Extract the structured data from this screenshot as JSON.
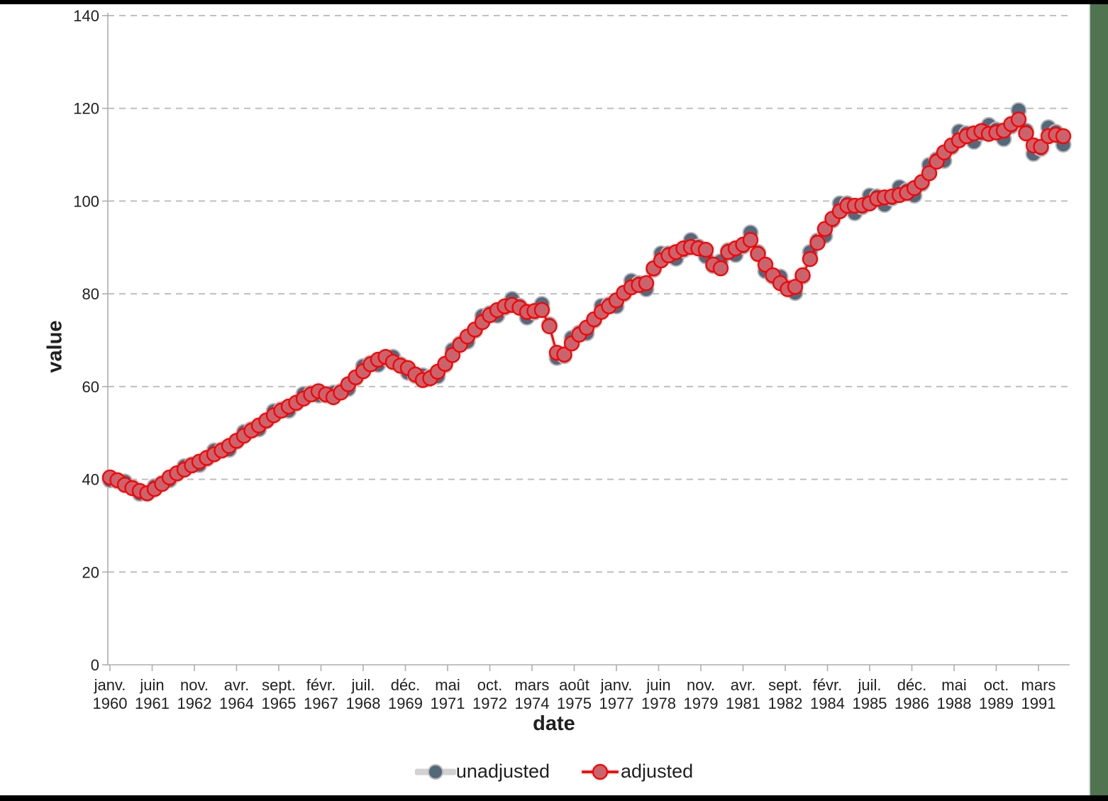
{
  "frame": {
    "top_bar_color": "#000000",
    "bottom_bar_color": "#000000",
    "right_bar_color": "#507350"
  },
  "chart_data": {
    "type": "line",
    "title": "",
    "xlabel": "date",
    "ylabel": "value",
    "ylim": [
      0,
      140
    ],
    "y_ticks": [
      0,
      20,
      40,
      60,
      80,
      100,
      120,
      140
    ],
    "grid": "horizontal-dashed",
    "legend_position": "bottom-center",
    "x_tick_labels": [
      {
        "month": "janv.",
        "year": "1960"
      },
      {
        "month": "juin",
        "year": "1961"
      },
      {
        "month": "nov.",
        "year": "1962"
      },
      {
        "month": "avr.",
        "year": "1964"
      },
      {
        "month": "sept.",
        "year": "1965"
      },
      {
        "month": "févr.",
        "year": "1967"
      },
      {
        "month": "juil.",
        "year": "1968"
      },
      {
        "month": "déc.",
        "year": "1969"
      },
      {
        "month": "mai",
        "year": "1971"
      },
      {
        "month": "oct.",
        "year": "1972"
      },
      {
        "month": "mars",
        "year": "1974"
      },
      {
        "month": "août",
        "year": "1975"
      },
      {
        "month": "janv.",
        "year": "1977"
      },
      {
        "month": "juin",
        "year": "1978"
      },
      {
        "month": "nov.",
        "year": "1979"
      },
      {
        "month": "avr.",
        "year": "1981"
      },
      {
        "month": "sept.",
        "year": "1982"
      },
      {
        "month": "févr.",
        "year": "1984"
      },
      {
        "month": "juil.",
        "year": "1985"
      },
      {
        "month": "déc.",
        "year": "1986"
      },
      {
        "month": "mai",
        "year": "1988"
      },
      {
        "month": "oct.",
        "year": "1989"
      },
      {
        "month": "mars",
        "year": "1991"
      }
    ],
    "x": [
      "1960-Q1",
      "1960-Q2",
      "1960-Q3",
      "1960-Q4",
      "1961-Q1",
      "1961-Q2",
      "1961-Q3",
      "1961-Q4",
      "1962-Q1",
      "1962-Q2",
      "1962-Q3",
      "1962-Q4",
      "1963-Q1",
      "1963-Q2",
      "1963-Q3",
      "1963-Q4",
      "1964-Q1",
      "1964-Q2",
      "1964-Q3",
      "1964-Q4",
      "1965-Q1",
      "1965-Q2",
      "1965-Q3",
      "1965-Q4",
      "1966-Q1",
      "1966-Q2",
      "1966-Q3",
      "1966-Q4",
      "1967-Q1",
      "1967-Q2",
      "1967-Q3",
      "1967-Q4",
      "1968-Q1",
      "1968-Q2",
      "1968-Q3",
      "1968-Q4",
      "1969-Q1",
      "1969-Q2",
      "1969-Q3",
      "1969-Q4",
      "1970-Q1",
      "1970-Q2",
      "1970-Q3",
      "1970-Q4",
      "1971-Q1",
      "1971-Q2",
      "1971-Q3",
      "1971-Q4",
      "1972-Q1",
      "1972-Q2",
      "1972-Q3",
      "1972-Q4",
      "1973-Q1",
      "1973-Q2",
      "1973-Q3",
      "1973-Q4",
      "1974-Q1",
      "1974-Q2",
      "1974-Q3",
      "1974-Q4",
      "1975-Q1",
      "1975-Q2",
      "1975-Q3",
      "1975-Q4",
      "1976-Q1",
      "1976-Q2",
      "1976-Q3",
      "1976-Q4",
      "1977-Q1",
      "1977-Q2",
      "1977-Q3",
      "1977-Q4",
      "1978-Q1",
      "1978-Q2",
      "1978-Q3",
      "1978-Q4",
      "1979-Q1",
      "1979-Q2",
      "1979-Q3",
      "1979-Q4",
      "1980-Q1",
      "1980-Q2",
      "1980-Q3",
      "1980-Q4",
      "1981-Q1",
      "1981-Q2",
      "1981-Q3",
      "1981-Q4",
      "1982-Q1",
      "1982-Q2",
      "1982-Q3",
      "1982-Q4",
      "1983-Q1",
      "1983-Q2",
      "1983-Q3",
      "1983-Q4",
      "1984-Q1",
      "1984-Q2",
      "1984-Q3",
      "1984-Q4",
      "1985-Q1",
      "1985-Q2",
      "1985-Q3",
      "1985-Q4",
      "1986-Q1",
      "1986-Q2",
      "1986-Q3",
      "1986-Q4",
      "1987-Q1",
      "1987-Q2",
      "1987-Q3",
      "1987-Q4",
      "1988-Q1",
      "1988-Q2",
      "1988-Q3",
      "1988-Q4",
      "1989-Q1",
      "1989-Q2",
      "1989-Q3",
      "1989-Q4",
      "1990-Q1",
      "1990-Q2",
      "1990-Q3",
      "1990-Q4",
      "1991-Q1",
      "1991-Q2",
      "1991-Q3",
      "1991-Q4",
      "1992-Q1"
    ],
    "series": [
      {
        "name": "unadjusted",
        "values": [
          39.8,
          39.6,
          39.5,
          38.3,
          36.9,
          36.9,
          38.5,
          39.2,
          39.8,
          41.1,
          42.8,
          43.2,
          43.1,
          44.4,
          46.2,
          46.4,
          46.4,
          48.1,
          50.2,
          50.8,
          50.8,
          52.5,
          54.7,
          55.1,
          54.8,
          56.3,
          58.4,
          58.6,
          58.1,
          58.1,
          58.7,
          59.0,
          59.5,
          61.8,
          64.4,
          65.1,
          64.7,
          66.1,
          66.4,
          64.8,
          63.0,
          62.3,
          62.4,
          62.1,
          62.2,
          64.6,
          67.9,
          69.3,
          69.7,
          72.0,
          75.2,
          75.8,
          75.3,
          77.0,
          78.9,
          77.4,
          74.9,
          76.0,
          77.8,
          73.4,
          66.2,
          66.6,
          70.5,
          71.6,
          71.5,
          74.2,
          77.4,
          77.7,
          77.3,
          79.9,
          82.8,
          82.3,
          81.0,
          85.2,
          88.7,
          88.7,
          87.6,
          89.4,
          91.6,
          90.2,
          88.1,
          86.0,
          87.0,
          89.4,
          88.4,
          90.2,
          93.2,
          89.0,
          84.9,
          83.7,
          83.7,
          81.4,
          80.2,
          83.7,
          89.0,
          91.5,
          92.5,
          95.8,
          99.5,
          99.5,
          97.4,
          98.7,
          101.2,
          101.0,
          99.2,
          100.6,
          103.0,
          102.3,
          101.2,
          103.7,
          107.8,
          109.0,
          108.7,
          111.6,
          115.0,
          114.6,
          112.8,
          114.6,
          116.4,
          115.4,
          113.4,
          116.1,
          119.6,
          115.2,
          110.2,
          111.3,
          115.9,
          114.9,
          112.2
        ]
      },
      {
        "name": "adjusted",
        "values": [
          40.4,
          39.8,
          38.8,
          38.1,
          37.5,
          37.0,
          37.9,
          39.0,
          40.4,
          41.3,
          42.1,
          43.0,
          43.8,
          44.6,
          45.4,
          46.2,
          47.2,
          48.3,
          49.4,
          50.5,
          51.6,
          52.7,
          53.8,
          54.8,
          55.7,
          56.5,
          57.4,
          58.3,
          59.0,
          58.3,
          57.7,
          58.7,
          60.5,
          62.0,
          63.3,
          64.8,
          65.8,
          66.4,
          65.3,
          64.5,
          64.0,
          62.6,
          61.4,
          61.8,
          63.2,
          64.9,
          66.8,
          69.0,
          70.8,
          72.3,
          73.9,
          75.4,
          76.5,
          77.3,
          77.6,
          77.0,
          76.1,
          76.3,
          76.5,
          73.0,
          67.3,
          66.9,
          69.3,
          71.2,
          72.7,
          74.5,
          76.1,
          77.3,
          78.6,
          80.2,
          81.4,
          81.9,
          82.3,
          85.5,
          87.2,
          88.3,
          89.0,
          89.8,
          90.1,
          89.8,
          89.5,
          86.3,
          85.5,
          89.0,
          89.8,
          90.6,
          91.6,
          88.6,
          86.3,
          84.0,
          82.3,
          81.0,
          81.5,
          84.0,
          87.5,
          91.0,
          94.0,
          96.2,
          97.8,
          99.0,
          99.0,
          99.1,
          99.5,
          100.5,
          100.8,
          101.0,
          101.3,
          101.8,
          102.8,
          104.1,
          106.0,
          108.5,
          110.5,
          112.0,
          113.1,
          114.0,
          114.6,
          115.1,
          114.5,
          114.8,
          115.2,
          116.6,
          117.6,
          114.6,
          112.0,
          111.7,
          114.0,
          114.3,
          114.0
        ]
      }
    ],
    "colors": {
      "adjusted_line": "#ff0000",
      "adjusted_marker_fill": "#c7656f",
      "adjusted_marker_stroke": "#ff0000",
      "unadjusted_line": "#d2d2d2",
      "unadjusted_marker_fill": "#54687c",
      "unadjusted_marker_stroke": "#b9b9b9",
      "grid": "#bfbfbf",
      "axis": "#aeaeae",
      "text": "#1f1f1f"
    }
  },
  "legend": {
    "items": [
      {
        "label": "unadjusted"
      },
      {
        "label": "adjusted"
      }
    ]
  }
}
